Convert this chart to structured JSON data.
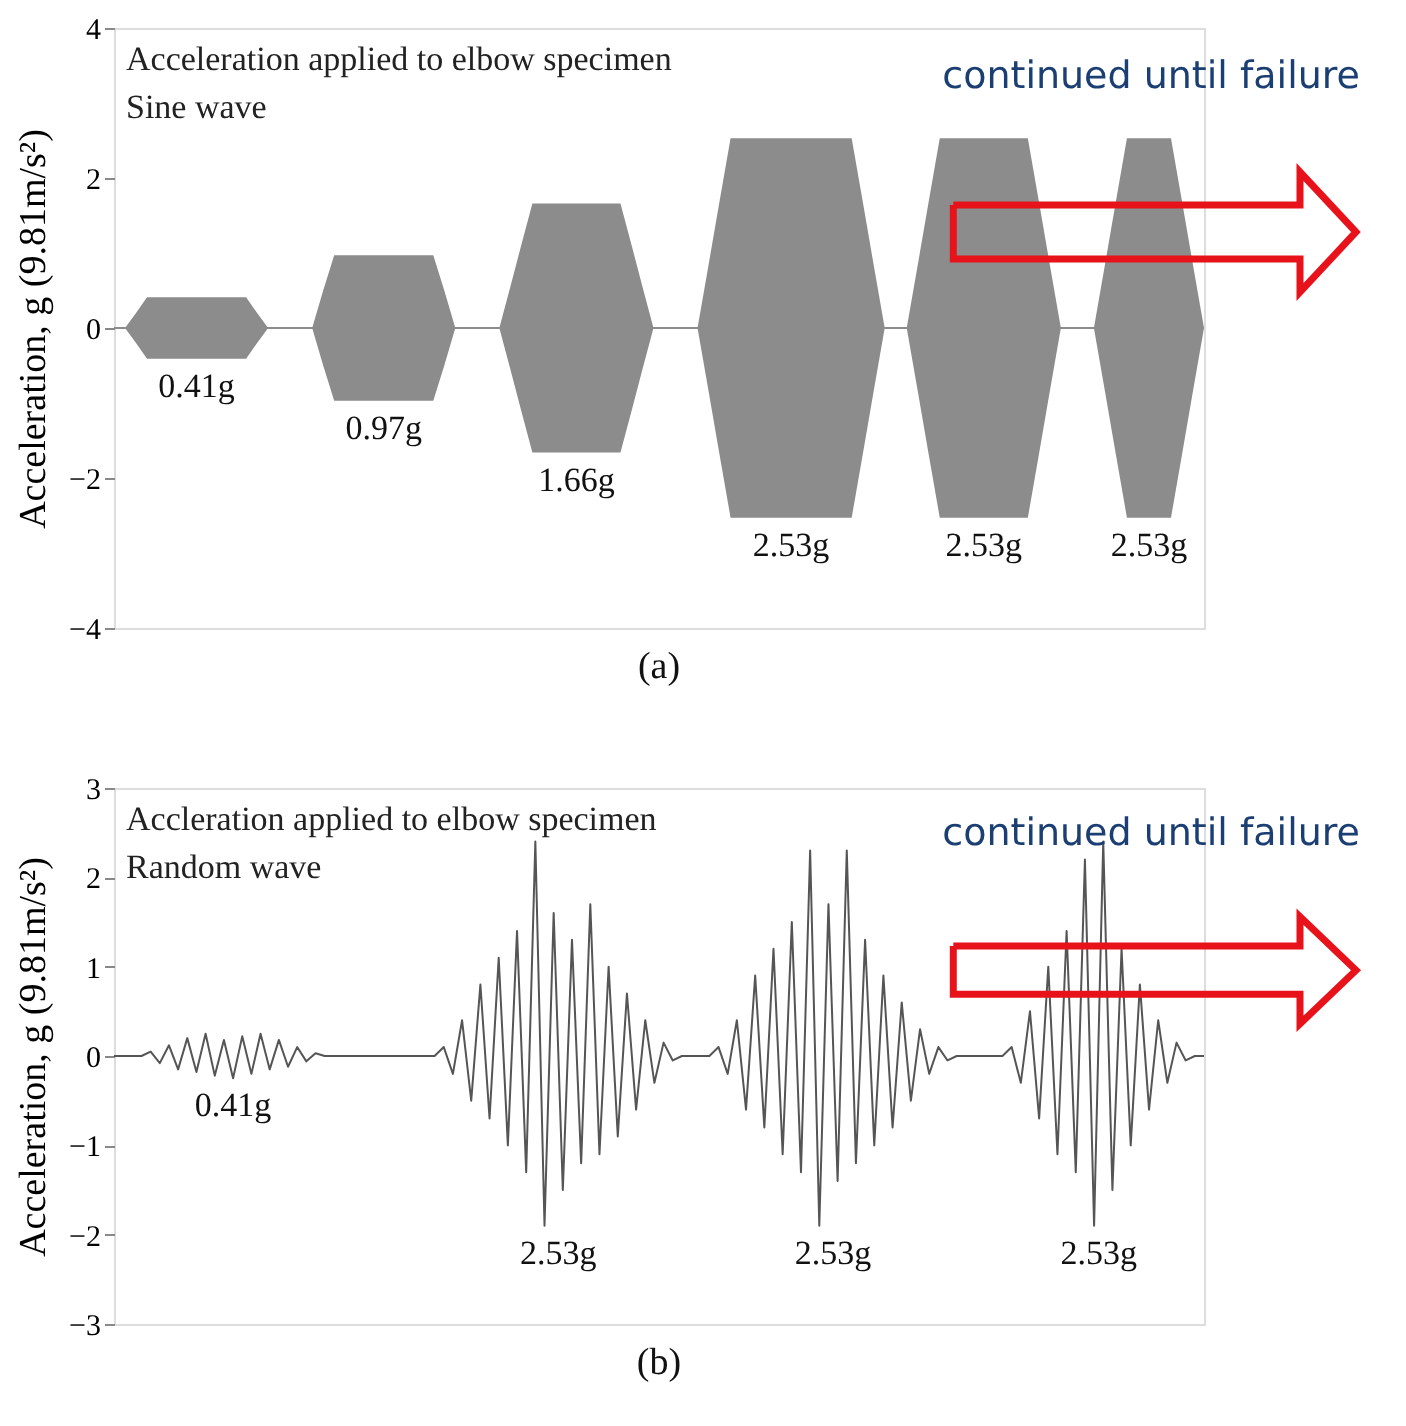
{
  "chart_data": [
    {
      "type": "line",
      "title": "Acceleration applied to elbow specimen",
      "subtitle": "Sine wave",
      "ylabel": "Acceleration, g (9.81m/s²)",
      "tick_labels": "y",
      "categories": [
        null,
        null,
        null,
        null,
        null,
        null,
        null,
        null,
        null,
        null,
        null,
        null,
        null,
        null,
        null,
        null,
        null,
        null,
        null,
        null,
        null,
        null,
        null,
        null,
        null,
        null,
        null,
        null,
        null,
        null,
        null,
        null,
        null,
        null,
        null,
        null,
        null,
        null,
        null,
        null,
        null,
        null,
        null,
        null,
        null,
        null,
        null,
        null,
        null,
        null,
        null,
        null,
        null,
        null,
        null,
        null,
        null,
        null,
        null,
        null,
        null,
        null,
        null,
        null,
        null,
        null,
        null,
        null,
        null,
        null,
        null,
        null,
        null,
        null,
        null,
        null,
        null,
        null,
        null,
        null,
        null,
        null,
        null,
        null,
        null,
        null,
        null,
        null,
        null,
        null,
        null,
        null,
        null,
        null,
        null,
        null,
        null,
        null,
        null,
        null
      ],
      "series": [
        {
          "color": "#8c8c8c",
          "values": [
            0,
            0,
            0,
            0,
            0,
            0,
            0,
            0,
            0,
            0,
            0,
            0,
            0,
            0,
            0,
            0,
            0,
            0,
            0,
            0,
            0,
            0,
            0,
            0,
            0,
            0,
            0,
            0,
            0,
            0,
            0,
            0,
            0,
            0,
            0,
            0,
            0,
            0,
            0,
            0,
            0,
            0,
            0,
            0,
            0,
            0,
            0,
            0,
            0,
            0,
            0,
            0,
            0,
            0,
            0,
            0,
            0,
            0,
            0,
            0,
            0,
            0,
            0,
            0,
            0,
            0,
            0,
            0,
            0,
            0,
            0,
            0,
            0,
            0,
            0,
            0,
            0,
            0,
            0,
            0,
            0,
            0,
            0,
            0,
            0,
            0,
            0,
            0,
            0,
            0,
            0,
            0,
            0,
            0,
            0,
            0,
            0,
            0,
            0,
            0
          ],
          "upper": [
            0,
            0,
            0.2,
            0.41,
            0.41,
            0.41,
            0.41,
            0.41,
            0.41,
            0.41,
            0.41,
            0.41,
            0.41,
            0.2,
            0,
            0,
            0,
            0,
            0,
            0.5,
            0.97,
            0.97,
            0.97,
            0.97,
            0.97,
            0.97,
            0.97,
            0.97,
            0.97,
            0.97,
            0.5,
            0,
            0,
            0,
            0,
            0,
            0.55,
            1.11,
            1.66,
            1.66,
            1.66,
            1.66,
            1.66,
            1.66,
            1.66,
            1.66,
            1.66,
            1.11,
            0.55,
            0,
            0,
            0,
            0,
            0,
            0.84,
            1.69,
            2.53,
            2.53,
            2.53,
            2.53,
            2.53,
            2.53,
            2.53,
            2.53,
            2.53,
            2.53,
            2.53,
            2.53,
            1.69,
            0.84,
            0,
            0,
            0,
            0.84,
            1.69,
            2.53,
            2.53,
            2.53,
            2.53,
            2.53,
            2.53,
            2.53,
            2.53,
            2.53,
            1.69,
            0.84,
            0,
            0,
            0,
            0,
            0.84,
            1.69,
            2.53,
            2.53,
            2.53,
            2.53,
            2.53,
            1.69,
            0.84,
            0
          ],
          "lower": [
            0,
            0,
            -0.2,
            -0.41,
            -0.41,
            -0.41,
            -0.41,
            -0.41,
            -0.41,
            -0.41,
            -0.41,
            -0.41,
            -0.41,
            -0.2,
            0,
            0,
            0,
            0,
            0,
            -0.5,
            -0.97,
            -0.97,
            -0.97,
            -0.97,
            -0.97,
            -0.97,
            -0.97,
            -0.97,
            -0.97,
            -0.97,
            -0.5,
            0,
            0,
            0,
            0,
            0,
            -0.55,
            -1.11,
            -1.66,
            -1.66,
            -1.66,
            -1.66,
            -1.66,
            -1.66,
            -1.66,
            -1.66,
            -1.66,
            -1.11,
            -0.55,
            0,
            0,
            0,
            0,
            0,
            -0.84,
            -1.69,
            -2.53,
            -2.53,
            -2.53,
            -2.53,
            -2.53,
            -2.53,
            -2.53,
            -2.53,
            -2.53,
            -2.53,
            -2.53,
            -2.53,
            -1.69,
            -0.84,
            0,
            0,
            0,
            -0.84,
            -1.69,
            -2.53,
            -2.53,
            -2.53,
            -2.53,
            -2.53,
            -2.53,
            -2.53,
            -2.53,
            -2.53,
            -1.69,
            -0.84,
            0,
            0,
            0,
            0,
            -0.84,
            -1.69,
            -2.53,
            -2.53,
            -2.53,
            -2.53,
            -2.53,
            -1.69,
            -0.84,
            0
          ]
        }
      ],
      "ylim": [
        -4,
        4
      ],
      "yticks": [
        -4,
        -2,
        0,
        2,
        4
      ],
      "annotations": [
        "0.41g",
        "0.97g",
        "1.66g",
        "2.53g",
        "2.53g",
        "2.53g",
        "continued until failure",
        "(a)"
      ]
    },
    {
      "type": "line",
      "title": "Accleration applied to elbow specimen",
      "subtitle": "Random wave",
      "ylabel": "Acceleration, g (9.81m/s²)",
      "tick_labels": "y",
      "categories": [
        null,
        null,
        null,
        null,
        null,
        null,
        null,
        null,
        null,
        null,
        null,
        null,
        null,
        null,
        null,
        null,
        null,
        null,
        null,
        null,
        null,
        null,
        null,
        null,
        null,
        null,
        null,
        null,
        null,
        null,
        null,
        null,
        null,
        null,
        null,
        null,
        null,
        null,
        null,
        null,
        null,
        null,
        null,
        null,
        null,
        null,
        null,
        null,
        null,
        null,
        null,
        null,
        null,
        null,
        null,
        null,
        null,
        null,
        null,
        null,
        null,
        null,
        null,
        null,
        null,
        null,
        null,
        null,
        null,
        null,
        null,
        null,
        null,
        null,
        null,
        null,
        null,
        null,
        null,
        null,
        null,
        null,
        null,
        null,
        null,
        null,
        null,
        null,
        null,
        null,
        null,
        null,
        null,
        null,
        null,
        null,
        null,
        null,
        null,
        null,
        null,
        null,
        null,
        null,
        null,
        null,
        null,
        null,
        null,
        null,
        null,
        null,
        null,
        null,
        null,
        null,
        null,
        null,
        null,
        null
      ],
      "series": [
        {
          "color": "#555555",
          "values": [
            0,
            0,
            0,
            0,
            0.05,
            -0.08,
            0.12,
            -0.15,
            0.2,
            -0.18,
            0.25,
            -0.22,
            0.18,
            -0.25,
            0.22,
            -0.2,
            0.25,
            -0.15,
            0.18,
            -0.12,
            0.1,
            -0.06,
            0.03,
            0,
            0,
            0,
            0,
            0,
            0,
            0,
            0,
            0,
            0,
            0,
            0,
            0,
            0.1,
            -0.2,
            0.4,
            -0.5,
            0.8,
            -0.7,
            1.1,
            -1.0,
            1.4,
            -1.3,
            2.4,
            -1.9,
            1.6,
            -1.5,
            1.3,
            -1.2,
            1.7,
            -1.1,
            1.0,
            -0.9,
            0.7,
            -0.6,
            0.4,
            -0.3,
            0.15,
            -0.05,
            0,
            0,
            0,
            0,
            0.1,
            -0.2,
            0.4,
            -0.6,
            0.9,
            -0.8,
            1.2,
            -1.1,
            1.5,
            -1.3,
            2.3,
            -1.9,
            1.7,
            -1.4,
            2.3,
            -1.2,
            1.3,
            -1.0,
            0.9,
            -0.8,
            0.6,
            -0.5,
            0.3,
            -0.2,
            0.1,
            -0.05,
            0,
            0,
            0,
            0,
            0,
            0,
            0.1,
            -0.3,
            0.5,
            -0.7,
            1.0,
            -1.1,
            1.4,
            -1.3,
            2.2,
            -1.9,
            2.4,
            -1.5,
            1.2,
            -1.0,
            0.8,
            -0.6,
            0.4,
            -0.3,
            0.15,
            -0.05,
            0,
            0
          ]
        }
      ],
      "ylim": [
        -3,
        3
      ],
      "yticks": [
        -3,
        -2,
        -1,
        0,
        1,
        2,
        3
      ],
      "annotations": [
        "0.41g",
        "2.53g",
        "2.53g",
        "2.53g",
        "continued until failure",
        "(b)"
      ]
    }
  ]
}
